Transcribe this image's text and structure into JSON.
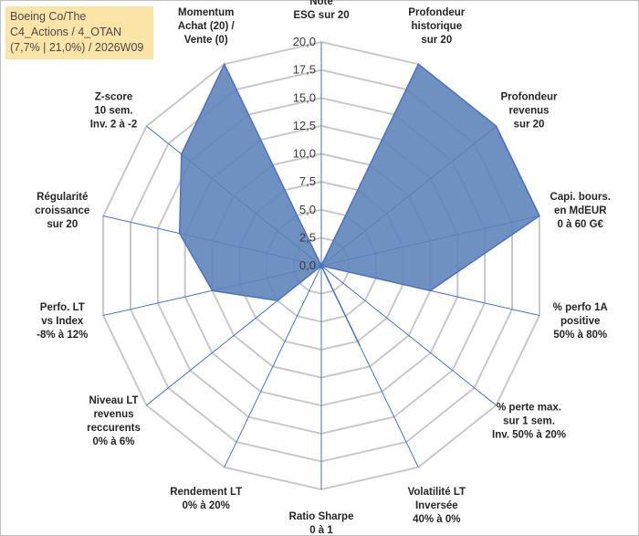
{
  "title_box": {
    "line1": "Boeing Co/The",
    "line2": "C4_Actions / 4_OTAN",
    "line3": "(7,7% | 21,0%) / 2026W09"
  },
  "colors": {
    "fill": "#5b82b8",
    "stroke": "#4a72c4",
    "grid": "#c8c8c8",
    "spoke": "#4a72c4",
    "title_bg": "#fce4a8"
  },
  "chart_data": {
    "type": "radar",
    "rmin": 0,
    "rmax": 20,
    "ticks": [
      "0,0",
      "2,5",
      "5,0",
      "7,5",
      "10,0",
      "12,5",
      "15,0",
      "17,5",
      "20,0"
    ],
    "axes": [
      {
        "lines": [
          "Note",
          "ESG sur 20"
        ],
        "value": 0
      },
      {
        "lines": [
          "Profondeur",
          "historique",
          "sur 20"
        ],
        "value": 20
      },
      {
        "lines": [
          "Profondeur",
          "revenus",
          "sur 20"
        ],
        "value": 20
      },
      {
        "lines": [
          "Capi. bours.",
          "en MdEUR",
          "0 à 60 G€"
        ],
        "value": 20
      },
      {
        "lines": [
          "% perfo 1A",
          "positive",
          "50% à 80%"
        ],
        "value": 10
      },
      {
        "lines": [
          "% perte max.",
          "sur 1 sem.",
          "Inv. 50% à 20%"
        ],
        "value": 0
      },
      {
        "lines": [
          "Volatilité LT",
          "Inversée",
          "40% à 0%"
        ],
        "value": 8
      },
      {
        "lines": [
          "Ratio Sharpe",
          "0 à 1"
        ],
        "value": 0
      },
      {
        "lines": [
          "Rendement LT",
          "0% à 20%"
        ],
        "value": 0
      },
      {
        "lines": [
          "Niveau LT",
          "revenus",
          "reccurents",
          "0% à 6%"
        ],
        "value": 5
      },
      {
        "lines": [
          "Perfo. LT",
          "vs Index",
          "-8% à 12%"
        ],
        "value": 10
      },
      {
        "lines": [
          "Régularité",
          "croissance",
          "sur 20"
        ],
        "value": 13
      },
      {
        "lines": [
          "Z-score",
          "10 sem.",
          "Inv. 2 à -2"
        ],
        "value": 16
      },
      {
        "lines": [
          "Momentum",
          "Achat (20) /",
          "Vente (0)"
        ],
        "value": 20
      }
    ]
  }
}
